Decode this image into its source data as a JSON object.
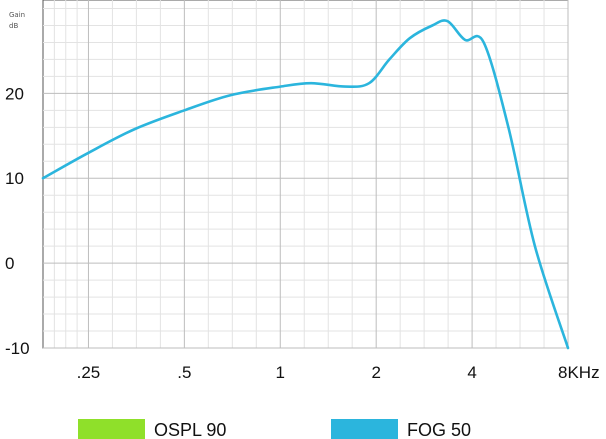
{
  "chart_data": {
    "type": "line",
    "title": "",
    "ylabel": "Gain dB",
    "xlabel": "",
    "x_tick_labels": [
      ".25",
      ".5",
      "1",
      "2",
      "4",
      "8KHz"
    ],
    "x_tick_values": [
      0.25,
      0.5,
      1,
      2,
      4,
      8
    ],
    "x_scale": "log",
    "xlim": [
      0.18,
      8
    ],
    "y_ticks": [
      20,
      10,
      0,
      -10
    ],
    "ylim": [
      -10,
      31
    ],
    "grid": true,
    "legend_position": "bottom",
    "series": [
      {
        "name": "OSPL 90",
        "color": "#8fe02a",
        "x": [],
        "y": []
      },
      {
        "name": "FOG 50",
        "color": "#2bb5dd",
        "x": [
          0.18,
          0.25,
          0.35,
          0.5,
          0.7,
          1.0,
          1.25,
          1.6,
          1.9,
          2.2,
          2.55,
          3.0,
          3.35,
          3.8,
          4.35,
          5.2,
          6.3,
          8.0
        ],
        "y": [
          10,
          13,
          15.8,
          18,
          19.8,
          20.8,
          21.2,
          20.8,
          21.2,
          24,
          26.5,
          28,
          28.5,
          26.3,
          26,
          16,
          2,
          -10
        ]
      }
    ]
  }
}
